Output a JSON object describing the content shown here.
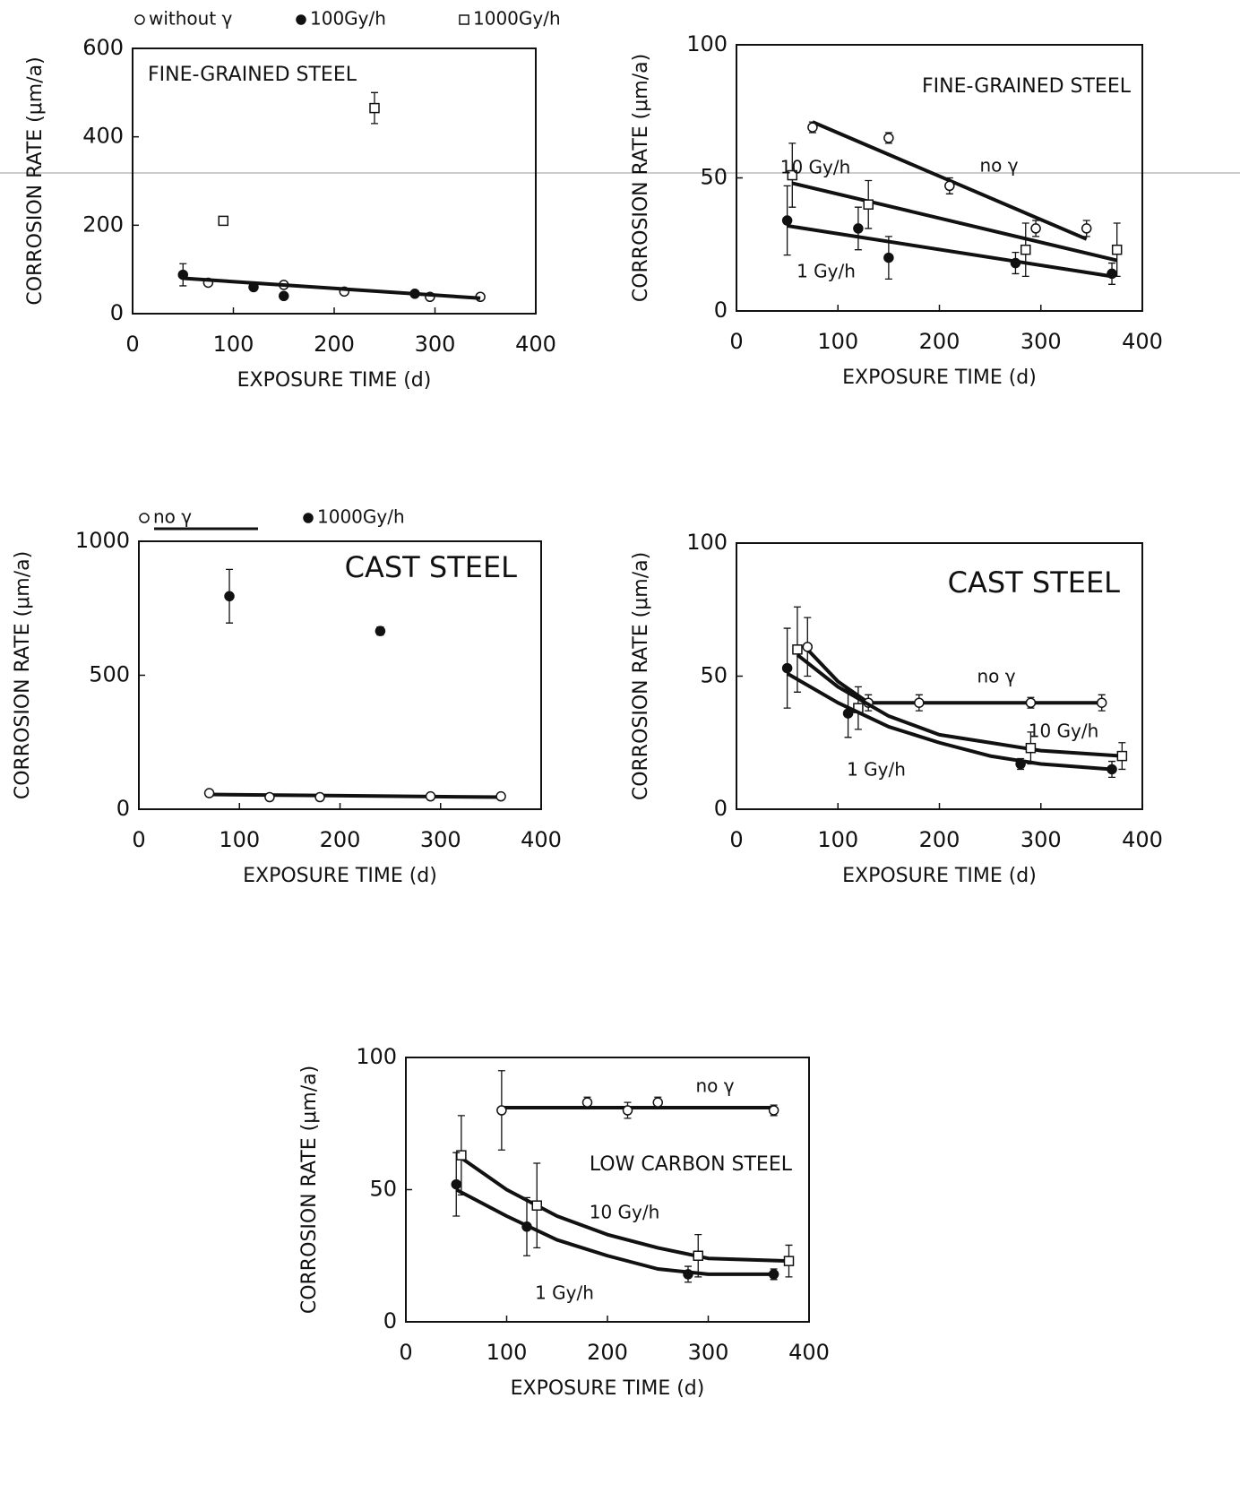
{
  "chart_data": [
    {
      "type": "scatter",
      "annotation": "FINE-GRAINED STEEL",
      "xlabel": "EXPOSURE TIME (d)",
      "ylabel": "CORROSION RATE (μm/a)",
      "xlim": [
        0,
        400
      ],
      "xticks": [
        0,
        100,
        200,
        300,
        400
      ],
      "ylim": [
        0,
        600
      ],
      "yticks": [
        0,
        200,
        400,
        600
      ],
      "legend": "top",
      "series": [
        {
          "name": "without γ",
          "marker": "open-circle",
          "color": "#111",
          "x": [
            75,
            150,
            210,
            295,
            345
          ],
          "values": [
            70,
            65,
            50,
            38,
            38
          ],
          "errors": [
            null,
            null,
            null,
            null,
            null
          ]
        },
        {
          "name": "100Gy/h",
          "marker": "filled-circle",
          "color": "#111",
          "x": [
            50,
            120,
            150,
            280
          ],
          "values": [
            88,
            60,
            40,
            45
          ],
          "errors": [
            25,
            null,
            null,
            null
          ],
          "fit": {
            "x": [
              50,
              345
            ],
            "y": [
              80,
              35
            ]
          }
        },
        {
          "name": "1000Gy/h",
          "marker": "open-square",
          "color": "#111",
          "x": [
            90,
            240
          ],
          "values": [
            210,
            465
          ],
          "errors": [
            8,
            35
          ]
        }
      ]
    },
    {
      "type": "scatter",
      "annotation": "FINE-GRAINED STEEL",
      "xlabel": "EXPOSURE TIME (d)",
      "ylabel": "CORROSION RATE (μm/a)",
      "xlim": [
        0,
        400
      ],
      "xticks": [
        0,
        100,
        200,
        300,
        400
      ],
      "ylim": [
        0,
        100
      ],
      "yticks": [
        0,
        50,
        100
      ],
      "series": [
        {
          "name": "no γ",
          "marker": "open-circle",
          "color": "#111",
          "x": [
            75,
            150,
            210,
            295,
            345
          ],
          "values": [
            69,
            65,
            47,
            31,
            31
          ],
          "errors": [
            2,
            2,
            3,
            3,
            3
          ],
          "fit": {
            "x": [
              75,
              345
            ],
            "y": [
              71,
              27
            ]
          }
        },
        {
          "name": "10 Gy/h",
          "marker": "open-square",
          "color": "#111",
          "x": [
            55,
            130,
            285,
            375
          ],
          "values": [
            51,
            40,
            23,
            23
          ],
          "errors": [
            12,
            9,
            10,
            10
          ],
          "fit": {
            "x": [
              55,
              375
            ],
            "y": [
              48,
              19
            ]
          }
        },
        {
          "name": "1 Gy/h",
          "marker": "filled-circle",
          "color": "#111",
          "x": [
            50,
            120,
            150,
            275,
            370
          ],
          "values": [
            34,
            31,
            20,
            18,
            14
          ],
          "errors": [
            13,
            8,
            8,
            4,
            4
          ],
          "fit": {
            "x": [
              50,
              370
            ],
            "y": [
              32,
              13
            ]
          }
        }
      ]
    },
    {
      "type": "scatter",
      "annotation": "CAST STEEL",
      "xlabel": "EXPOSURE TIME (d)",
      "ylabel": "CORROSION RATE (μm/a)",
      "xlim": [
        0,
        400
      ],
      "xticks": [
        0,
        100,
        200,
        300,
        400
      ],
      "ylim": [
        0,
        1000
      ],
      "yticks": [
        0,
        500,
        1000
      ],
      "legend": "top",
      "series": [
        {
          "name": "no γ",
          "marker": "open-circle",
          "color": "#111",
          "x": [
            70,
            130,
            180,
            290,
            360
          ],
          "values": [
            60,
            45,
            45,
            48,
            48
          ],
          "errors": [
            null,
            null,
            null,
            null,
            null
          ],
          "fit": {
            "x": [
              70,
              360
            ],
            "y": [
              55,
              45
            ]
          }
        },
        {
          "name": "1000Gy/h",
          "marker": "filled-circle",
          "color": "#111",
          "x": [
            90,
            240
          ],
          "values": [
            795,
            665
          ],
          "errors": [
            100,
            15
          ]
        }
      ]
    },
    {
      "type": "scatter",
      "annotation": "CAST STEEL",
      "xlabel": "EXPOSURE TIME (d)",
      "ylabel": "CORROSION RATE (μm/a)",
      "xlim": [
        0,
        400
      ],
      "xticks": [
        0,
        100,
        200,
        300,
        400
      ],
      "ylim": [
        0,
        100
      ],
      "yticks": [
        0,
        50,
        100
      ],
      "series": [
        {
          "name": "no γ",
          "marker": "open-circle",
          "color": "#111",
          "x": [
            70,
            130,
            180,
            290,
            360
          ],
          "values": [
            61,
            40,
            40,
            40,
            40
          ],
          "errors": [
            11,
            3,
            3,
            2,
            3
          ],
          "fit": {
            "x": [
              70,
              100,
              130,
              360
            ],
            "y": [
              60,
              48,
              40,
              40
            ]
          }
        },
        {
          "name": "10 Gy/h",
          "marker": "open-square",
          "color": "#111",
          "x": [
            60,
            120,
            290,
            380
          ],
          "values": [
            60,
            38,
            23,
            20
          ],
          "errors": [
            16,
            8,
            6,
            5
          ],
          "fit": {
            "x": [
              60,
              100,
              150,
              200,
              250,
              300,
              380
            ],
            "y": [
              58,
              46,
              35,
              28,
              25,
              22,
              20
            ]
          }
        },
        {
          "name": "1 Gy/h",
          "marker": "filled-circle",
          "color": "#111",
          "x": [
            50,
            110,
            280,
            370
          ],
          "values": [
            53,
            36,
            17,
            15
          ],
          "errors": [
            15,
            9,
            2,
            3
          ],
          "fit": {
            "x": [
              50,
              100,
              150,
              200,
              250,
              300,
              370
            ],
            "y": [
              51,
              40,
              31,
              25,
              20,
              17,
              15
            ]
          }
        }
      ]
    },
    {
      "type": "scatter",
      "annotation": "LOW CARBON STEEL",
      "xlabel": "EXPOSURE TIME (d)",
      "ylabel": "CORROSION RATE (μm/a)",
      "xlim": [
        0,
        400
      ],
      "xticks": [
        0,
        100,
        200,
        300,
        400
      ],
      "ylim": [
        0,
        100
      ],
      "yticks": [
        0,
        50,
        100
      ],
      "series": [
        {
          "name": "no γ",
          "marker": "open-circle",
          "color": "#111",
          "x": [
            95,
            180,
            220,
            250,
            365
          ],
          "values": [
            80,
            83,
            80,
            83,
            80
          ],
          "errors": [
            15,
            2,
            3,
            2,
            2
          ],
          "fit": {
            "x": [
              95,
              365
            ],
            "y": [
              81,
              81
            ]
          }
        },
        {
          "name": "10 Gy/h",
          "marker": "open-square",
          "color": "#111",
          "x": [
            55,
            130,
            290,
            380
          ],
          "values": [
            63,
            44,
            25,
            23
          ],
          "errors": [
            15,
            16,
            8,
            6
          ],
          "fit": {
            "x": [
              55,
              100,
              150,
              200,
              250,
              300,
              380
            ],
            "y": [
              62,
              50,
              40,
              33,
              28,
              24,
              23
            ]
          }
        },
        {
          "name": "1 Gy/h",
          "marker": "filled-circle",
          "color": "#111",
          "x": [
            50,
            120,
            280,
            365
          ],
          "values": [
            52,
            36,
            18,
            18
          ],
          "errors": [
            12,
            11,
            3,
            2
          ],
          "fit": {
            "x": [
              50,
              100,
              150,
              200,
              250,
              300,
              365
            ],
            "y": [
              50,
              40,
              31,
              25,
              20,
              18,
              18
            ]
          }
        }
      ]
    }
  ]
}
